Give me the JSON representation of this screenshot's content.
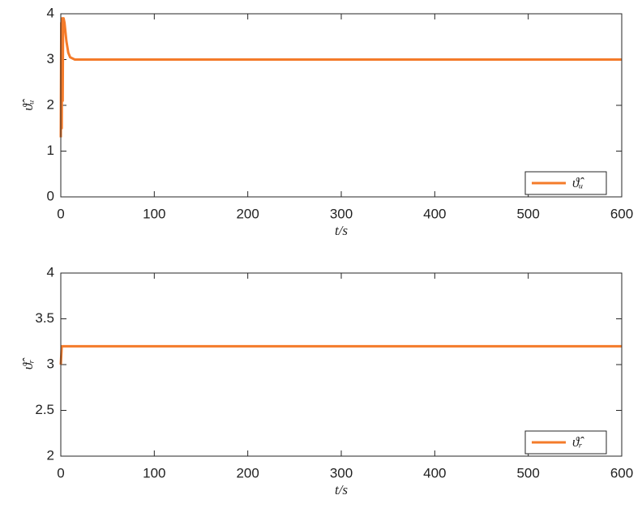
{
  "chart_data": [
    {
      "type": "line",
      "xlabel": "t/s",
      "ylabel": "ϑ̂ᵤ",
      "x": [
        0,
        0.5,
        1,
        1.5,
        2,
        2.5,
        3,
        4,
        5,
        6,
        8,
        10,
        15,
        20,
        600
      ],
      "series": [
        {
          "name": "ϑ̂ᵤ",
          "color": "#f47b2a",
          "values": [
            1.3,
            3.8,
            1.5,
            3.9,
            2.1,
            3.9,
            3.9,
            3.8,
            3.6,
            3.4,
            3.15,
            3.05,
            3.0,
            3.0,
            3.0
          ]
        }
      ],
      "xlim": [
        0,
        600
      ],
      "xticks": [
        0,
        100,
        200,
        300,
        400,
        500,
        600
      ],
      "ylim": [
        0,
        4
      ],
      "yticks": [
        0,
        1,
        2,
        3,
        4
      ],
      "legend": "lower right"
    },
    {
      "type": "line",
      "xlabel": "t/s",
      "ylabel": "ϑ̂ᵣ",
      "x": [
        0,
        1,
        2,
        600
      ],
      "series": [
        {
          "name": "ϑ̂ᵣ",
          "color": "#f47b2a",
          "values": [
            3.0,
            3.2,
            3.2,
            3.2
          ]
        }
      ],
      "xlim": [
        0,
        600
      ],
      "xticks": [
        0,
        100,
        200,
        300,
        400,
        500,
        600
      ],
      "ylim": [
        2,
        4
      ],
      "yticks": [
        2,
        2.5,
        3,
        3.5,
        4
      ],
      "legend": "lower right"
    }
  ]
}
